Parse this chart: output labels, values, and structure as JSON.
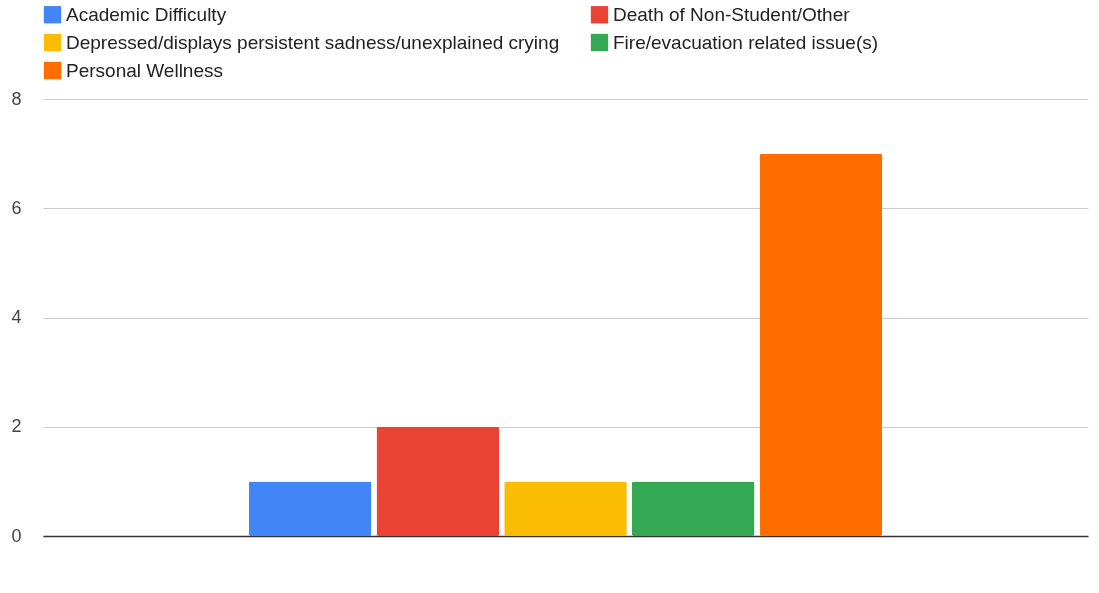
{
  "chart_data": {
    "type": "bar",
    "categories": [
      null
    ],
    "series": [
      {
        "name": "Academic Difficulty",
        "color": "#4285f4",
        "values": [
          1
        ]
      },
      {
        "name": "Death of Non-Student/Other",
        "color": "#ea4335",
        "values": [
          2
        ]
      },
      {
        "name": "Depressed/displays persistent sadness/unexplained crying",
        "color": "#fbbc04",
        "values": [
          1
        ]
      },
      {
        "name": "Fire/evacuation related issue(s)",
        "color": "#34a853",
        "values": [
          1
        ]
      },
      {
        "name": "Personal Wellness",
        "color": "#ff6d01",
        "values": [
          7
        ]
      }
    ],
    "ylim": [
      0,
      8
    ],
    "yticks": [
      0,
      2,
      4,
      6,
      8
    ],
    "grid": "y",
    "legend": "top"
  }
}
